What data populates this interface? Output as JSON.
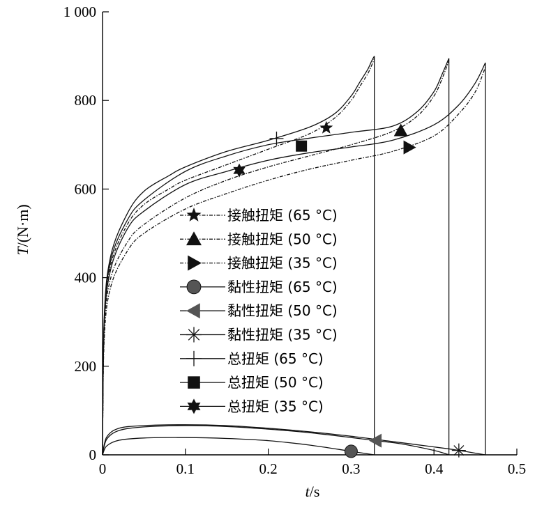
{
  "chart_data": {
    "type": "line",
    "title": "",
    "xlabel": "t/s",
    "ylabel": "T/(N·m)",
    "xlim": [
      0,
      0.5
    ],
    "ylim": [
      0,
      1000
    ],
    "x_ticks": [
      0,
      0.1,
      0.2,
      0.3,
      0.4,
      0.5
    ],
    "x_tick_labels": [
      "0",
      "0.1",
      "0.2",
      "0.3",
      "0.4",
      "0.5"
    ],
    "y_ticks": [
      0,
      200,
      400,
      600,
      800,
      1000
    ],
    "y_tick_labels": [
      "0",
      "200",
      "400",
      "600",
      "800",
      "1 000"
    ],
    "legend_position": "center",
    "series": [
      {
        "name": "接触扭矩 (65 °C)",
        "style": "dashdot",
        "marker": "star",
        "x": [
          0,
          0.002,
          0.01,
          0.03,
          0.05,
          0.08,
          0.1,
          0.15,
          0.2,
          0.25,
          0.28,
          0.3,
          0.31,
          0.32,
          0.325,
          0.328
        ],
        "y": [
          0,
          300,
          430,
          520,
          565,
          600,
          620,
          655,
          690,
          725,
          760,
          800,
          830,
          860,
          880,
          895
        ],
        "markers": [
          {
            "x": 0.27,
            "y": 738
          }
        ]
      },
      {
        "name": "接触扭矩 (50 °C)",
        "style": "dashdot",
        "marker": "triangle-up",
        "x": [
          0,
          0.002,
          0.01,
          0.03,
          0.05,
          0.1,
          0.15,
          0.2,
          0.25,
          0.3,
          0.35,
          0.38,
          0.4,
          0.41,
          0.418
        ],
        "y": [
          0,
          280,
          400,
          480,
          520,
          580,
          620,
          650,
          675,
          700,
          730,
          765,
          810,
          850,
          890
        ],
        "markers": [
          {
            "x": 0.36,
            "y": 732
          }
        ]
      },
      {
        "name": "接触扭矩 (35 °C)",
        "style": "dashdot",
        "marker": "triangle-right",
        "x": [
          0,
          0.002,
          0.01,
          0.03,
          0.05,
          0.1,
          0.15,
          0.2,
          0.25,
          0.3,
          0.35,
          0.4,
          0.43,
          0.45,
          0.462
        ],
        "y": [
          0,
          260,
          380,
          460,
          500,
          555,
          590,
          620,
          645,
          665,
          685,
          720,
          770,
          820,
          875
        ],
        "markers": [
          {
            "x": 0.37,
            "y": 694
          }
        ]
      },
      {
        "name": "黏性扭矩 (65 °C)",
        "style": "solid",
        "marker": "circle",
        "x": [
          0,
          0.005,
          0.02,
          0.05,
          0.1,
          0.15,
          0.2,
          0.25,
          0.3,
          0.328
        ],
        "y": [
          0,
          20,
          33,
          38,
          39,
          37,
          32,
          22,
          8,
          0
        ],
        "markers": [
          {
            "x": 0.3,
            "y": 8
          }
        ]
      },
      {
        "name": "黏性扭矩 (50 °C)",
        "style": "solid",
        "marker": "triangle-left",
        "x": [
          0,
          0.005,
          0.02,
          0.05,
          0.1,
          0.15,
          0.2,
          0.25,
          0.3,
          0.33,
          0.36,
          0.4,
          0.418
        ],
        "y": [
          0,
          35,
          55,
          63,
          66,
          64,
          58,
          50,
          39,
          32,
          25,
          10,
          0
        ],
        "markers": [
          {
            "x": 0.33,
            "y": 32
          }
        ]
      },
      {
        "name": "黏性扭矩 (35 °C)",
        "style": "solid",
        "marker": "asterisk",
        "x": [
          0,
          0.005,
          0.02,
          0.05,
          0.1,
          0.15,
          0.2,
          0.25,
          0.3,
          0.35,
          0.4,
          0.43,
          0.462
        ],
        "y": [
          0,
          40,
          60,
          66,
          68,
          66,
          60,
          52,
          42,
          30,
          18,
          10,
          0
        ],
        "markers": [
          {
            "x": 0.43,
            "y": 10
          }
        ]
      },
      {
        "name": "总扭矩 (65 °C)",
        "style": "solid",
        "marker": "plus",
        "x": [
          0,
          0.002,
          0.01,
          0.03,
          0.05,
          0.08,
          0.1,
          0.15,
          0.2,
          0.25,
          0.28,
          0.3,
          0.31,
          0.32,
          0.325,
          0.328,
          0.328
        ],
        "y": [
          0,
          310,
          450,
          545,
          595,
          630,
          650,
          685,
          710,
          740,
          770,
          810,
          840,
          870,
          890,
          900,
          0
        ],
        "markers": [
          {
            "x": 0.21,
            "y": 714
          }
        ]
      },
      {
        "name": "总扭矩 (50 °C)",
        "style": "solid",
        "marker": "square",
        "x": [
          0,
          0.002,
          0.01,
          0.03,
          0.05,
          0.1,
          0.15,
          0.2,
          0.25,
          0.3,
          0.35,
          0.38,
          0.4,
          0.41,
          0.418,
          0.418
        ],
        "y": [
          0,
          300,
          440,
          530,
          575,
          640,
          675,
          700,
          715,
          728,
          742,
          775,
          820,
          860,
          895,
          0
        ],
        "markers": [
          {
            "x": 0.24,
            "y": 697
          }
        ]
      },
      {
        "name": "总扭矩 (35 °C)",
        "style": "solid",
        "marker": "star6",
        "x": [
          0,
          0.002,
          0.01,
          0.03,
          0.05,
          0.1,
          0.15,
          0.2,
          0.25,
          0.3,
          0.35,
          0.4,
          0.43,
          0.45,
          0.462,
          0.462
        ],
        "y": [
          0,
          290,
          420,
          510,
          550,
          610,
          640,
          665,
          682,
          695,
          710,
          745,
          790,
          840,
          885,
          0
        ],
        "markers": [
          {
            "x": 0.165,
            "y": 642
          }
        ]
      }
    ]
  }
}
